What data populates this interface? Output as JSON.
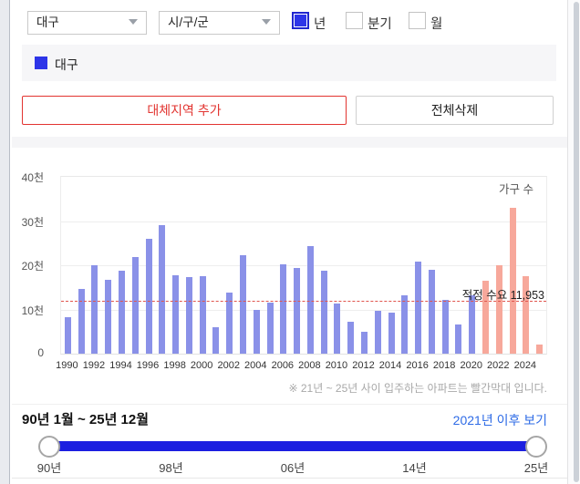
{
  "filters": {
    "region_select": {
      "value": "대구"
    },
    "district_select": {
      "value": "시/구/군"
    },
    "period_options": [
      {
        "label": "년",
        "checked": true
      },
      {
        "label": "분기",
        "checked": false
      },
      {
        "label": "월",
        "checked": false
      }
    ]
  },
  "legend": {
    "items": [
      {
        "label": "대구",
        "color": "#2d35e8"
      }
    ]
  },
  "actions": {
    "add_region_label": "대체지역 추가",
    "clear_all_label": "전체삭제"
  },
  "chart_data": {
    "type": "bar",
    "unit_label": "가구 수",
    "ylabel_ticks": [
      "40천",
      "30천",
      "20천",
      "10천",
      "0"
    ],
    "ylim": [
      0,
      40000
    ],
    "years": [
      1990,
      1991,
      1992,
      1993,
      1994,
      1995,
      1996,
      1997,
      1998,
      1999,
      2000,
      2001,
      2002,
      2003,
      2004,
      2005,
      2006,
      2007,
      2008,
      2009,
      2010,
      2011,
      2012,
      2013,
      2014,
      2015,
      2016,
      2017,
      2018,
      2019,
      2020,
      2021,
      2022,
      2023,
      2024,
      2025
    ],
    "values": [
      8200,
      14600,
      20100,
      16700,
      18700,
      21800,
      26000,
      29100,
      17800,
      17400,
      17600,
      5900,
      13900,
      22300,
      9800,
      11500,
      20200,
      19300,
      24400,
      18700,
      11300,
      7300,
      5000,
      9700,
      9300,
      13200,
      20800,
      18900,
      12100,
      6600,
      13100,
      16500,
      20100,
      32900,
      17600,
      2000
    ],
    "x_tick_labels": [
      "1990",
      "1992",
      "1994",
      "1996",
      "1998",
      "2000",
      "2002",
      "2004",
      "2006",
      "2008",
      "2010",
      "2012",
      "2014",
      "2016",
      "2018",
      "2020",
      "2022",
      "2024"
    ],
    "bar_color": "#8a91e8",
    "highlight_color": "#f7a89b",
    "highlight_from_year": 2021,
    "reference_line": {
      "value": 11953,
      "label": "적정 수요 11,953",
      "color": "#e0554d"
    },
    "footnote": "※ 21년 ~ 25년 사이 입주하는 아파트는 빨간막대 입니다."
  },
  "range_slider": {
    "range_label": "90년 1월 ~ 25년 12월",
    "link_label": "2021년 이후 보기",
    "tick_labels": [
      "90년",
      "98년",
      "06년",
      "14년",
      "25년"
    ],
    "track_color": "#1c1fe0"
  }
}
